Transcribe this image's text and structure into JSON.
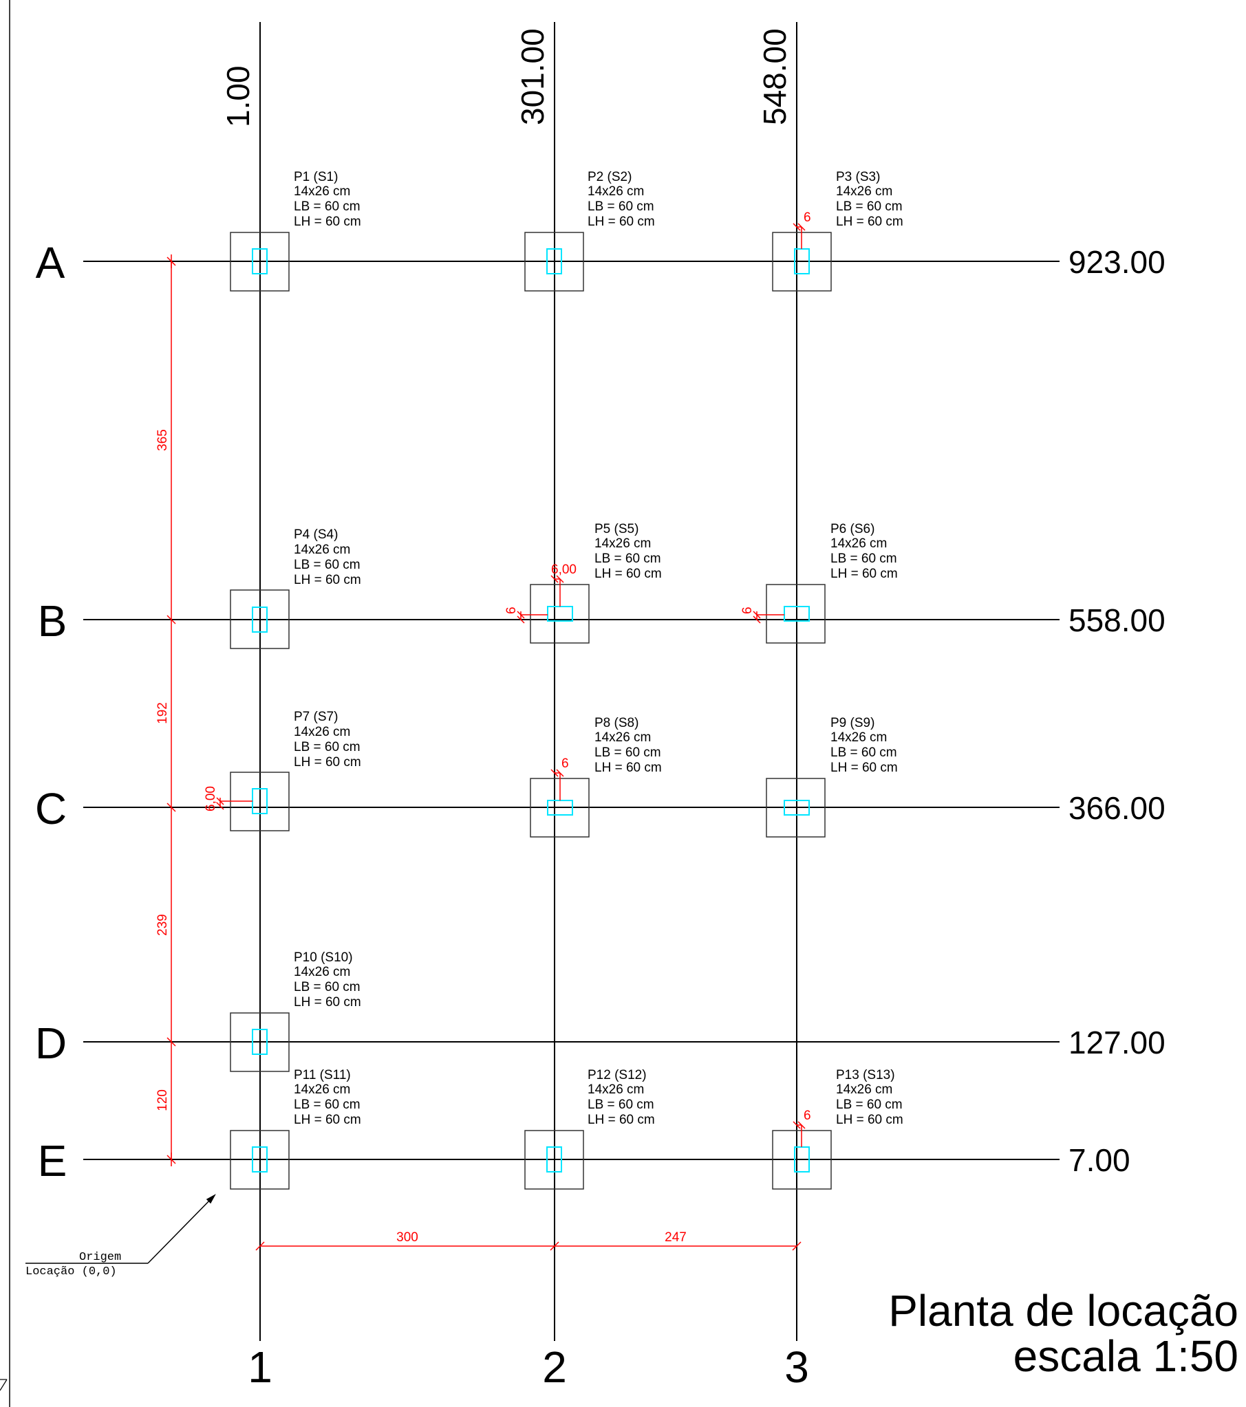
{
  "title": {
    "line1": "Planta de locação",
    "line2": "escala 1:50"
  },
  "origin": {
    "label1": "Origem",
    "label2": "Locação (0,0)"
  },
  "axes_vertical": [
    {
      "id": "1",
      "label": "1",
      "coord": "1.00"
    },
    {
      "id": "2",
      "label": "2",
      "coord": "301.00"
    },
    {
      "id": "3",
      "label": "3",
      "coord": "548.00"
    }
  ],
  "axes_horizontal": [
    {
      "id": "A",
      "label": "A",
      "coord": "923.00"
    },
    {
      "id": "B",
      "label": "B",
      "coord": "558.00"
    },
    {
      "id": "C",
      "label": "C",
      "coord": "366.00"
    },
    {
      "id": "D",
      "label": "D",
      "coord": "127.00"
    },
    {
      "id": "E",
      "label": "E",
      "coord": "7.00"
    }
  ],
  "dimensions_vertical": [
    {
      "label": "365"
    },
    {
      "label": "192"
    },
    {
      "label": "239"
    },
    {
      "label": "120"
    }
  ],
  "dimensions_horizontal": [
    {
      "label": "300"
    },
    {
      "label": "247"
    }
  ],
  "pillars": [
    {
      "name": "P1 (S1)",
      "size": "14x26 cm",
      "lb": "LB = 60 cm",
      "lh": "LH = 60 cm"
    },
    {
      "name": "P2 (S2)",
      "size": "14x26 cm",
      "lb": "LB = 60 cm",
      "lh": "LH = 60 cm"
    },
    {
      "name": "P3 (S3)",
      "size": "14x26 cm",
      "lb": "LB = 60 cm",
      "lh": "LH = 60 cm"
    },
    {
      "name": "P4 (S4)",
      "size": "14x26 cm",
      "lb": "LB = 60 cm",
      "lh": "LH = 60 cm"
    },
    {
      "name": "P5 (S5)",
      "size": "14x26 cm",
      "lb": "LB = 60 cm",
      "lh": "LH = 60 cm"
    },
    {
      "name": "P6 (S6)",
      "size": "14x26 cm",
      "lb": "LB = 60 cm",
      "lh": "LH = 60 cm"
    },
    {
      "name": "P7 (S7)",
      "size": "14x26 cm",
      "lb": "LB = 60 cm",
      "lh": "LH = 60 cm"
    },
    {
      "name": "P8 (S8)",
      "size": "14x26 cm",
      "lb": "LB = 60 cm",
      "lh": "LH = 60 cm"
    },
    {
      "name": "P9 (S9)",
      "size": "14x26 cm",
      "lb": "LB = 60 cm",
      "lh": "LH = 60 cm"
    },
    {
      "name": "P10 (S10)",
      "size": "14x26 cm",
      "lb": "LB = 60 cm",
      "lh": "LH = 60 cm"
    },
    {
      "name": "P11 (S11)",
      "size": "14x26 cm",
      "lb": "LB = 60 cm",
      "lh": "LH = 60 cm"
    },
    {
      "name": "P12 (S12)",
      "size": "14x26 cm",
      "lb": "LB = 60 cm",
      "lh": "LH = 60 cm"
    },
    {
      "name": "P13 (S13)",
      "size": "14x26 cm",
      "lb": "LB = 60 cm",
      "lh": "LH = 60 cm"
    }
  ],
  "offsets": {
    "p3": "6",
    "p5_top": "6,00",
    "p5_left": "6",
    "p6_left": "6",
    "p7_left": "6,00",
    "p8_top": "6",
    "p13": "6"
  },
  "colors": {
    "line": "#000000",
    "dimension": "#ff0000",
    "column": "#00e5ff"
  }
}
